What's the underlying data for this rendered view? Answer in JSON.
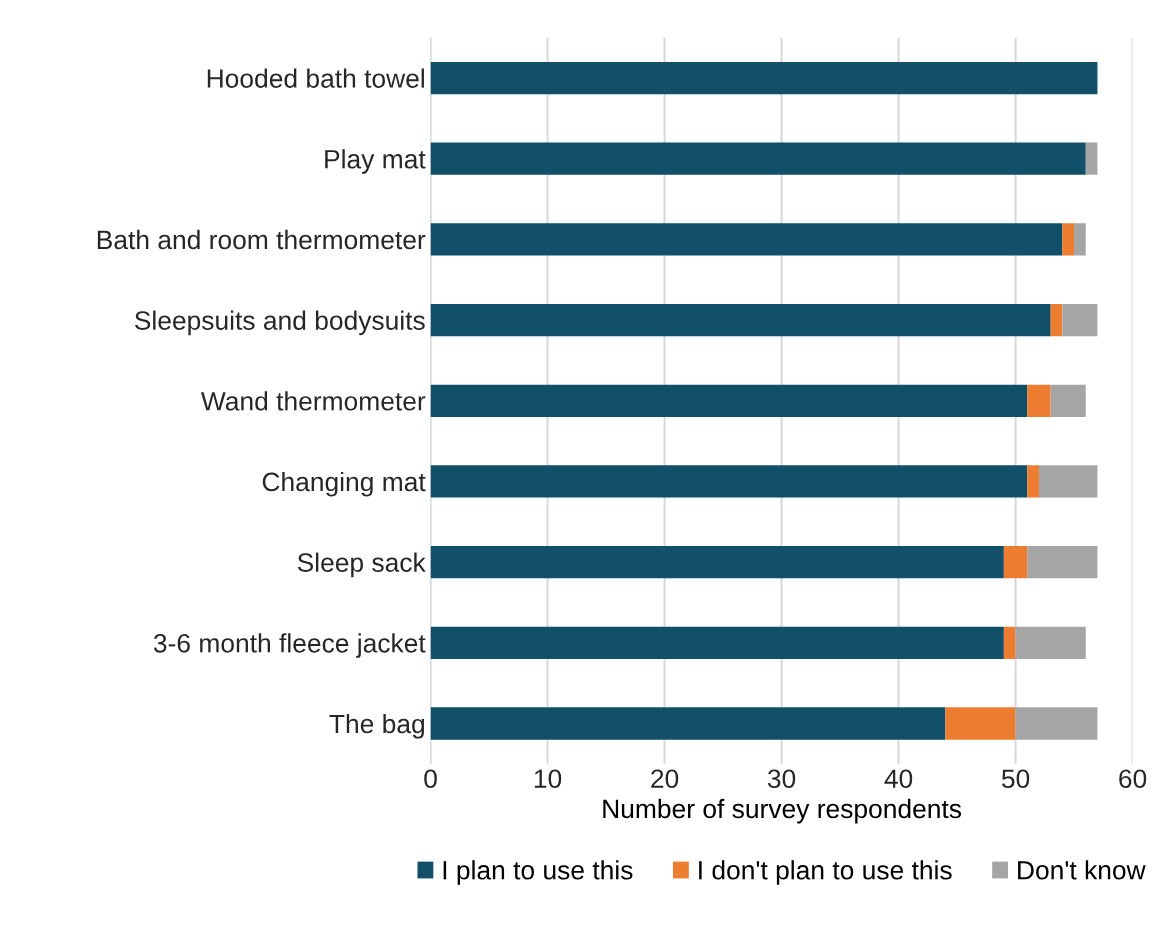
{
  "chart_data": {
    "type": "bar",
    "orientation": "horizontal",
    "stacked": true,
    "xlabel": "Number of survey respondents",
    "categories": [
      "Hooded bath towel",
      "Play mat",
      "Bath and room thermometer",
      "Sleepsuits and bodysuits",
      "Wand thermometer",
      "Changing mat",
      "Sleep sack",
      "3-6 month fleece jacket",
      "The bag"
    ],
    "series": [
      {
        "name": "I plan to use this",
        "color": "#124f69",
        "values": [
          57,
          56,
          54,
          53,
          51,
          51,
          49,
          49,
          44
        ]
      },
      {
        "name": "I don't plan to use this",
        "color": "#ed7d31",
        "values": [
          0,
          0,
          1,
          1,
          2,
          1,
          2,
          1,
          6
        ]
      },
      {
        "name": "Don't know",
        "color": "#a5a5a5",
        "values": [
          0,
          1,
          1,
          3,
          3,
          5,
          6,
          6,
          7
        ]
      }
    ],
    "xlim": [
      0,
      60
    ],
    "xticks": [
      0,
      10,
      20,
      30,
      40,
      50,
      60
    ],
    "grid": "x",
    "legend": "bottom"
  }
}
